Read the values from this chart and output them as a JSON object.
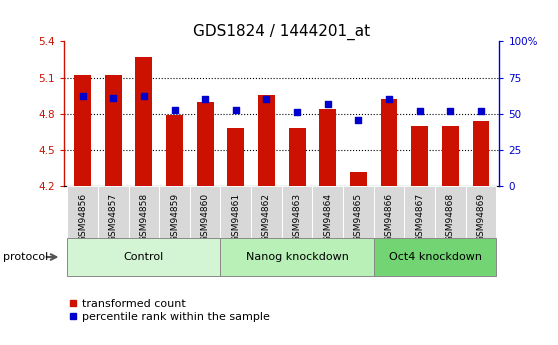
{
  "title": "GDS1824 / 1444201_at",
  "samples": [
    "GSM94856",
    "GSM94857",
    "GSM94858",
    "GSM94859",
    "GSM94860",
    "GSM94861",
    "GSM94862",
    "GSM94863",
    "GSM94864",
    "GSM94865",
    "GSM94866",
    "GSM94867",
    "GSM94868",
    "GSM94869"
  ],
  "transformed_counts": [
    5.12,
    5.12,
    5.27,
    4.79,
    4.9,
    4.68,
    4.96,
    4.68,
    4.84,
    4.32,
    4.92,
    4.7,
    4.7,
    4.74
  ],
  "percentile_ranks": [
    62,
    61,
    62,
    53,
    60,
    53,
    60,
    51,
    57,
    46,
    60,
    52,
    52,
    52
  ],
  "groups": [
    {
      "label": "Control",
      "start": 0,
      "end": 5,
      "color": "#d4f5d4"
    },
    {
      "label": "Nanog knockdown",
      "start": 5,
      "end": 10,
      "color": "#b8f0b8"
    },
    {
      "label": "Oct4 knockdown",
      "start": 10,
      "end": 14,
      "color": "#72d472"
    }
  ],
  "ylim_left": [
    4.2,
    5.4
  ],
  "ylim_right": [
    0,
    100
  ],
  "yticks_left": [
    4.2,
    4.5,
    4.8,
    5.1,
    5.4
  ],
  "yticks_right": [
    0,
    25,
    50,
    75,
    100
  ],
  "ytick_labels_right": [
    "0",
    "25",
    "50",
    "75",
    "100%"
  ],
  "grid_lines": [
    4.5,
    4.8,
    5.1
  ],
  "bar_color": "#cc1100",
  "dot_color": "#0000cc",
  "bar_width": 0.55,
  "baseline": 4.2,
  "legend_items": [
    "transformed count",
    "percentile rank within the sample"
  ],
  "protocol_label": "protocol",
  "title_fontsize": 11,
  "tick_fontsize": 7.5,
  "group_fontsize": 9,
  "legend_fontsize": 8,
  "sample_bg_color": "#d8d8d8",
  "sample_border_color": "#ffffff"
}
